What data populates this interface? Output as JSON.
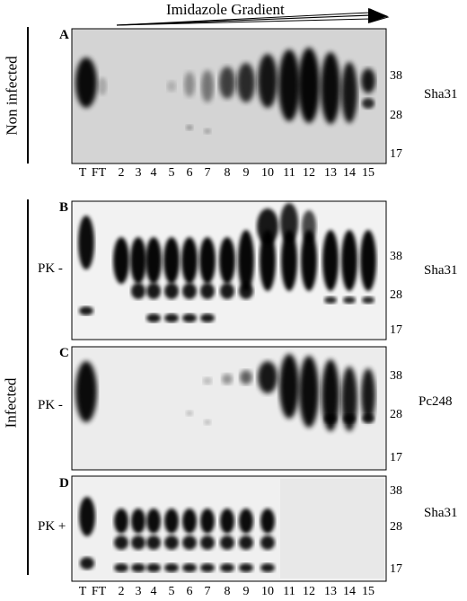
{
  "header": {
    "title": "Imidazole Gradient"
  },
  "groups": [
    "Non infected",
    "Infected"
  ],
  "lanes": [
    "T",
    "FT",
    "2",
    "3",
    "4",
    "5",
    "6",
    "7",
    "8",
    "9",
    "10",
    "11",
    "12",
    "13",
    "14",
    "15"
  ],
  "panels": [
    {
      "letter": "A",
      "antibody": "Sha31",
      "treatment": "",
      "markers": [
        "38",
        "28",
        "17"
      ]
    },
    {
      "letter": "B",
      "antibody": "Sha31",
      "treatment": "PK -",
      "markers": [
        "38",
        "28",
        "17"
      ]
    },
    {
      "letter": "C",
      "antibody": "Pc248",
      "treatment": "PK -",
      "markers": [
        "38",
        "28",
        "17"
      ]
    },
    {
      "letter": "D",
      "antibody": "Sha31",
      "treatment": "PK +",
      "markers": [
        "38",
        "28",
        "17"
      ]
    }
  ]
}
